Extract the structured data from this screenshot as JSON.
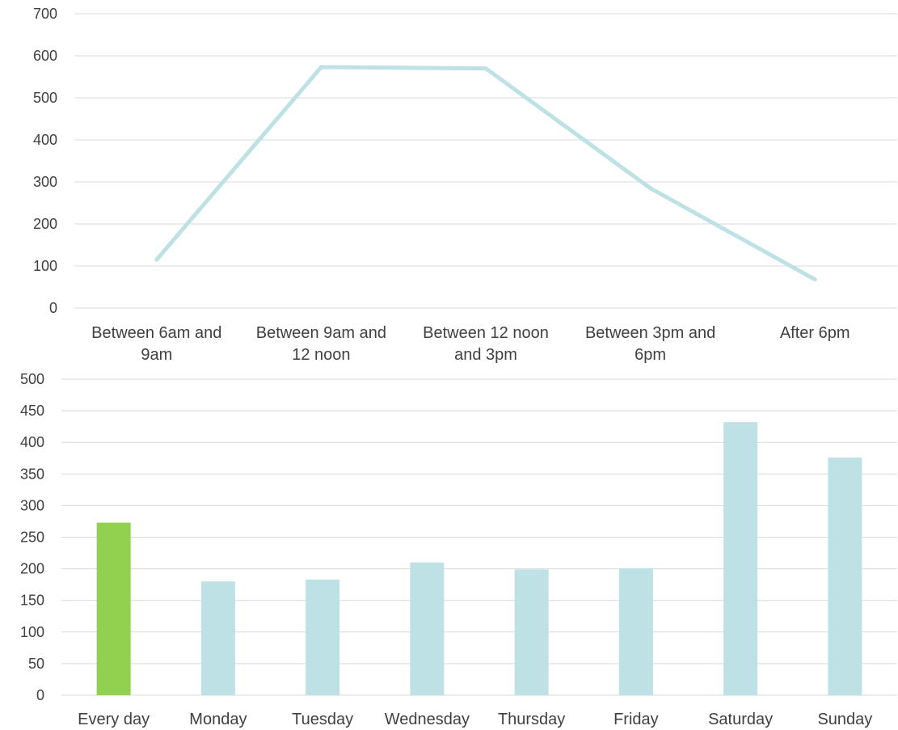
{
  "colors": {
    "line": "#bde1e4",
    "bar": "#bde1e4",
    "bar_highlight": "#92d050",
    "grid": "#d9d9d9",
    "text": "#404040"
  },
  "chart_data": [
    {
      "type": "line",
      "categories": [
        [
          "Between 6am and",
          "9am"
        ],
        [
          "Between 9am and",
          "12 noon"
        ],
        [
          "Between 12 noon",
          "and 3pm"
        ],
        [
          "Between 3pm and",
          "6pm"
        ],
        [
          "After 6pm"
        ]
      ],
      "values": [
        115,
        573,
        570,
        285,
        68
      ],
      "ylim": [
        0,
        700
      ],
      "yticks": [
        "0",
        "100",
        "200",
        "300",
        "400",
        "500",
        "600",
        "700"
      ],
      "grid": true,
      "title": "",
      "xlabel": "",
      "ylabel": ""
    },
    {
      "type": "bar",
      "categories": [
        "Every day",
        "Monday",
        "Tuesday",
        "Wednesday",
        "Thursday",
        "Friday",
        "Saturday",
        "Sunday"
      ],
      "values": [
        273,
        180,
        183,
        210,
        199,
        201,
        432,
        376
      ],
      "highlight_index": 0,
      "ylim": [
        0,
        500
      ],
      "yticks": [
        "0",
        "50",
        "100",
        "150",
        "200",
        "250",
        "300",
        "350",
        "400",
        "450",
        "500"
      ],
      "grid": true,
      "title": "",
      "xlabel": "",
      "ylabel": ""
    }
  ]
}
